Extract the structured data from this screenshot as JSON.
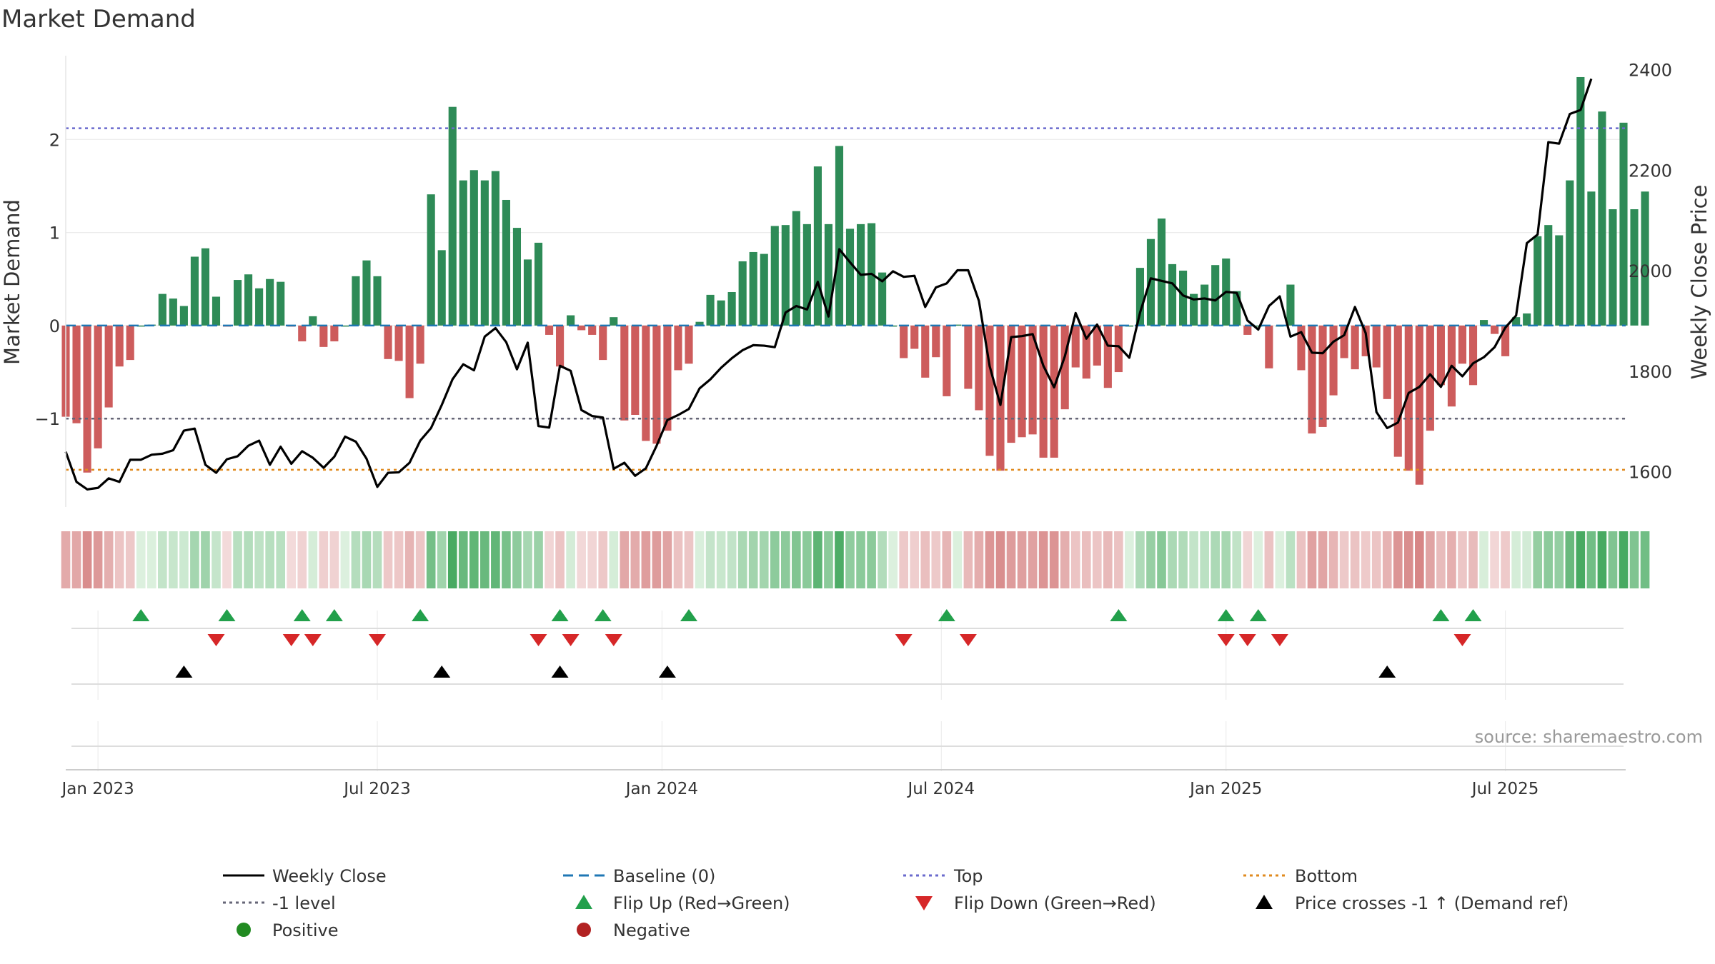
{
  "title": "Market Demand",
  "source": "source: sharemaestro.com",
  "colors": {
    "positive": "#2e8b57",
    "negative": "#cd5c5c",
    "price": "#000000",
    "baseline": "#1f77b4",
    "top": "#6a6acd",
    "bottom": "#e08a1e",
    "minus1": "#666677",
    "flip_up": "#22a04b",
    "flip_down": "#d62728",
    "cross": "#000000",
    "dot_pos": "#228b22",
    "dot_neg": "#b22222"
  },
  "chart_data": {
    "type": "bar+line",
    "title": "Market Demand",
    "ylabel_left": "Market Demand",
    "ylabel_right": "Weekly Close Price",
    "ylim_left": [
      -1.95,
      2.9
    ],
    "ylim_right": [
      1530,
      2428
    ],
    "yticks_left": [
      {
        "value": 2,
        "label": "2"
      },
      {
        "value": 1,
        "label": "1"
      },
      {
        "value": 0,
        "label": "0"
      },
      {
        "value": -1,
        "label": "−1"
      }
    ],
    "yticks_right": [
      {
        "value": 2400,
        "label": "2400"
      },
      {
        "value": 2200,
        "label": "2200"
      },
      {
        "value": 2000,
        "label": "2000"
      },
      {
        "value": 1800,
        "label": "1800"
      },
      {
        "value": 1600,
        "label": "1600"
      }
    ],
    "x_range_weeks": [
      0,
      145.2
    ],
    "xticks": [
      {
        "week": 3,
        "label": "Jan 2023"
      },
      {
        "week": 29,
        "label": "Jul 2023"
      },
      {
        "week": 55.5,
        "label": "Jan 2024"
      },
      {
        "week": 81.5,
        "label": "Jul 2024"
      },
      {
        "week": 108,
        "label": "Jan 2025"
      },
      {
        "week": 134,
        "label": "Jul 2025"
      }
    ],
    "reference_lines": {
      "top": 2.12,
      "bottom": -1.55,
      "minus1_level": -1,
      "baseline": 0
    },
    "demand": [
      -0.98,
      -1.05,
      -1.58,
      -1.32,
      -0.88,
      -0.44,
      -0.37,
      0,
      0.01,
      0.34,
      0.29,
      0.21,
      0.74,
      0.83,
      0.31,
      -0.01,
      0.49,
      0.55,
      0.4,
      0.5,
      0.47,
      -0.01,
      -0.17,
      0.1,
      -0.23,
      -0.17,
      0,
      0.53,
      0.7,
      0.53,
      -0.36,
      -0.38,
      -0.78,
      -0.41,
      1.41,
      0.81,
      2.35,
      1.56,
      1.67,
      1.56,
      1.66,
      1.35,
      1.05,
      0.71,
      0.89,
      -0.1,
      -0.44,
      0.11,
      -0.05,
      -0.1,
      -0.37,
      0.09,
      -1.02,
      -0.96,
      -1.24,
      -1.27,
      -1.13,
      -0.48,
      -0.41,
      0.04,
      0.33,
      0.27,
      0.36,
      0.69,
      0.79,
      0.77,
      1.07,
      1.08,
      1.23,
      1.09,
      1.71,
      1.09,
      1.93,
      1.04,
      1.09,
      1.1,
      0.57,
      0.0,
      -0.35,
      -0.25,
      -0.56,
      -0.34,
      -0.76,
      0.01,
      -0.68,
      -0.91,
      -1.4,
      -1.56,
      -1.26,
      -1.2,
      -1.17,
      -1.42,
      -1.42,
      -0.9,
      -0.45,
      -0.57,
      -0.43,
      -0.67,
      -0.5,
      0.0,
      0.62,
      0.93,
      1.15,
      0.66,
      0.59,
      0.34,
      0.44,
      0.65,
      0.72,
      0.37,
      -0.1,
      0.0,
      -0.46,
      0.0,
      0.44,
      -0.48,
      -1.16,
      -1.09,
      -0.75,
      -0.35,
      -0.47,
      -0.33,
      -0.45,
      -0.79,
      -1.41,
      -1.56,
      -1.71,
      -1.13,
      -0.64,
      -0.87,
      -0.41,
      -0.64,
      0.06,
      -0.09,
      -0.33,
      0.09,
      0.13,
      0.96,
      1.08,
      0.97,
      1.56,
      2.67,
      1.44,
      2.3,
      1.25,
      2.18,
      1.25,
      1.44
    ],
    "weekly_close": [
      1640,
      1580,
      1565,
      1568,
      1587,
      1580,
      1624,
      1624,
      1634,
      1636,
      1643,
      1682,
      1686,
      1614,
      1598,
      1625,
      1631,
      1652,
      1662,
      1614,
      1650,
      1616,
      1641,
      1628,
      1608,
      1630,
      1670,
      1660,
      1626,
      1570,
      1598,
      1599,
      1618,
      1662,
      1687,
      1733,
      1784,
      1814,
      1802,
      1869,
      1886,
      1858,
      1804,
      1857,
      1691,
      1688,
      1811,
      1801,
      1723,
      1711,
      1708,
      1606,
      1618,
      1592,
      1607,
      1652,
      1703,
      1713,
      1725,
      1766,
      1784,
      1807,
      1826,
      1842,
      1852,
      1851,
      1848,
      1917,
      1930,
      1923,
      1978,
      1909,
      2043,
      2017,
      1992,
      1994,
      1979,
      1999,
      1988,
      1990,
      1928,
      1967,
      1975,
      2001,
      2001,
      1940,
      1810,
      1733,
      1868,
      1870,
      1874,
      1811,
      1768,
      1830,
      1916,
      1865,
      1893,
      1851,
      1850,
      1827,
      1917,
      1985,
      1980,
      1975,
      1951,
      1943,
      1945,
      1941,
      1958,
      1956,
      1901,
      1883,
      1930,
      1949,
      1869,
      1878,
      1837,
      1836,
      1859,
      1872,
      1928,
      1876,
      1719,
      1687,
      1698,
      1757,
      1769,
      1794,
      1769,
      1811,
      1790,
      1816,
      1828,
      1848,
      1887,
      1911,
      2055,
      2072,
      2256,
      2253,
      2312,
      2320,
      2382
    ],
    "flip_up_weeks": [
      7,
      15,
      22,
      25,
      33,
      46,
      50,
      58,
      82,
      98,
      108,
      111,
      128,
      131
    ],
    "flip_down_weeks": [
      14,
      21,
      23,
      29,
      44,
      47,
      51,
      78,
      84,
      108,
      110,
      113,
      130
    ],
    "price_cross_weeks": [
      11,
      35,
      46,
      56,
      123
    ]
  },
  "legend": {
    "weekly_close": "Weekly Close",
    "baseline": "Baseline (0)",
    "top": "Top",
    "bottom": "Bottom",
    "minus1": "-1 level",
    "flip_up": "Flip Up (Red→Green)",
    "flip_down": "Flip Down (Green→Red)",
    "price_cross": "Price crosses -1 ↑ (Demand ref)",
    "positive": "Positive",
    "negative": "Negative"
  }
}
